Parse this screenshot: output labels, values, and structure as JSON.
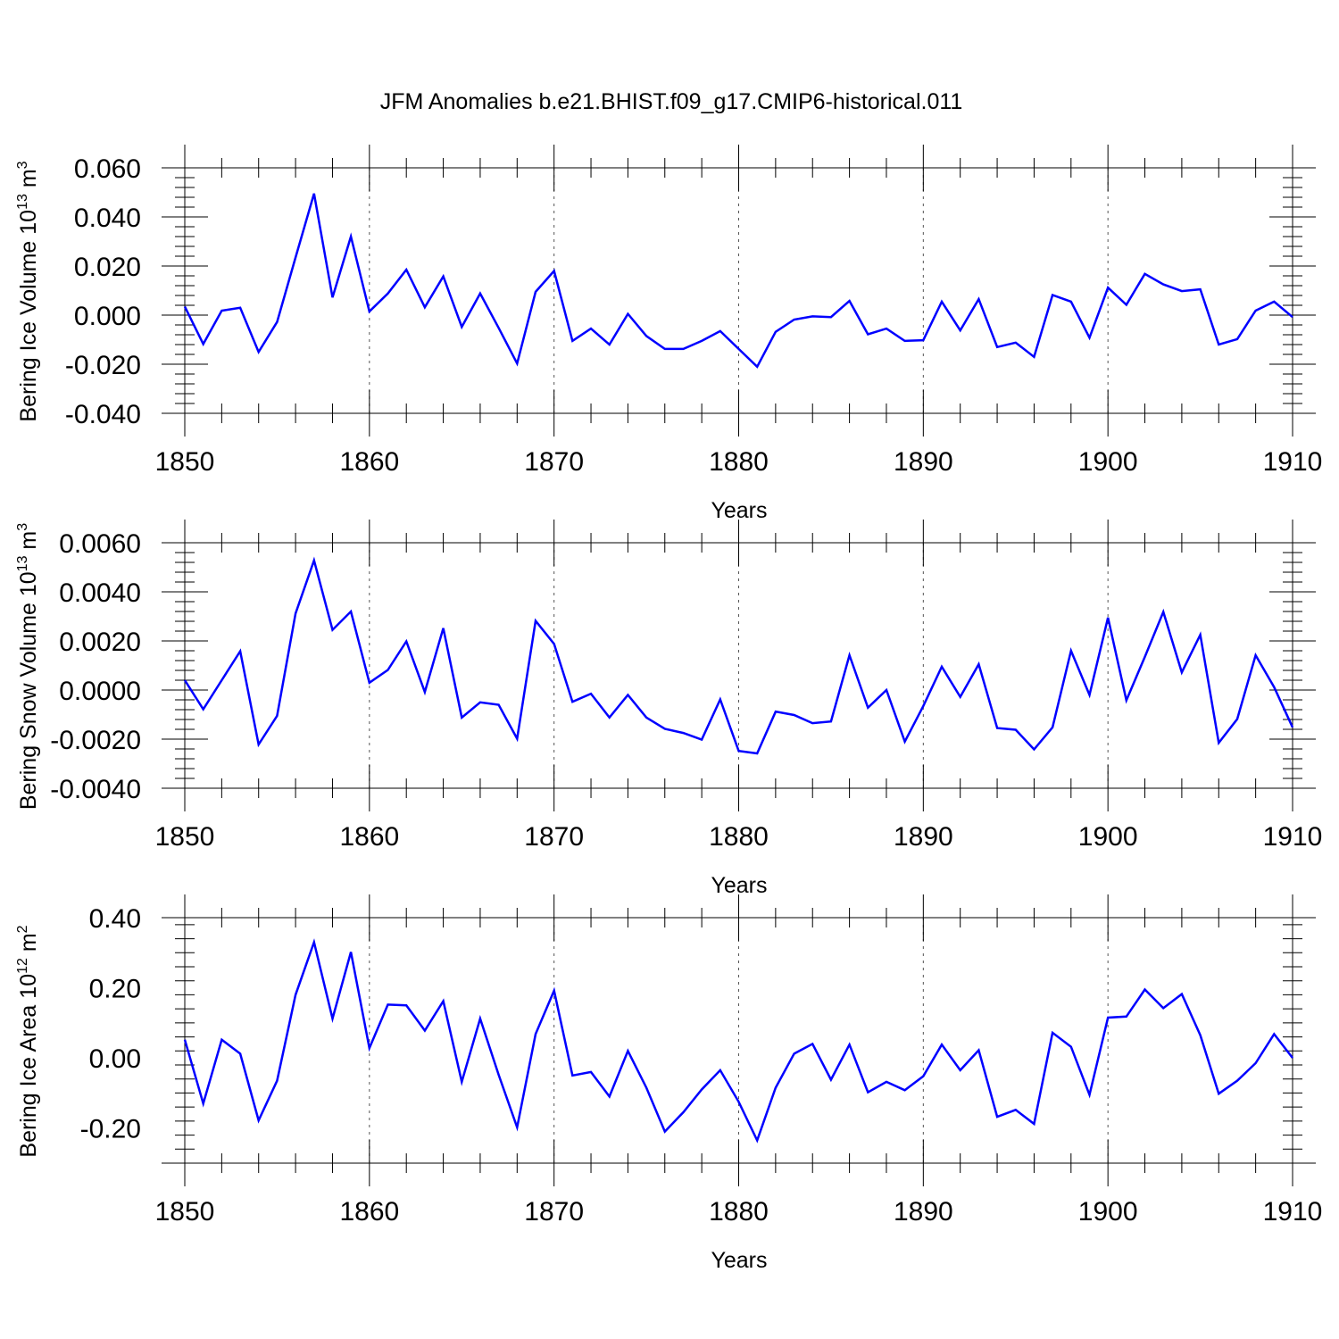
{
  "title": "JFM Anomalies b.e21.BHIST.f09_g17.CMIP6-historical.011",
  "line_color": "#0000ff",
  "chart_data": [
    {
      "type": "line",
      "id": "ice-volume",
      "ylabel": "Bering Ice Volume 10",
      "ylabel_exp": "13",
      "ylabel_unit": " m",
      "ylabel_unit_exp": "3",
      "xlabel": "Years",
      "xlim": [
        1850,
        1910
      ],
      "ylim": [
        -0.04,
        0.06
      ],
      "yticks": [
        -0.04,
        -0.02,
        0.0,
        0.02,
        0.04,
        0.06
      ],
      "ytick_labels": [
        "-0.040",
        "-0.020",
        "0.000",
        "0.020",
        "0.040",
        "0.060"
      ],
      "xticks": [
        1850,
        1860,
        1870,
        1880,
        1890,
        1900,
        1910
      ],
      "xtick_labels": [
        "1850",
        "1860",
        "1870",
        "1880",
        "1890",
        "1900",
        "1910"
      ],
      "x_start": 1850,
      "series": [
        {
          "name": "Bering Ice Volume",
          "values": [
            0.0035,
            -0.0118,
            0.0018,
            0.003,
            -0.015,
            -0.0028,
            0.0235,
            0.0495,
            0.0072,
            0.032,
            0.0015,
            0.0088,
            0.0185,
            0.0032,
            0.0158,
            -0.0048,
            0.0088,
            -0.0052,
            -0.0197,
            0.0095,
            0.018,
            -0.0105,
            -0.0055,
            -0.012,
            0.0005,
            -0.0085,
            -0.0138,
            -0.0138,
            -0.0105,
            -0.0065,
            -0.0138,
            -0.021,
            -0.0068,
            -0.0018,
            -0.0005,
            -0.0008,
            0.0058,
            -0.0078,
            -0.0055,
            -0.0105,
            -0.0102,
            0.0055,
            -0.0062,
            0.0065,
            -0.013,
            -0.0112,
            -0.017,
            0.0082,
            0.0055,
            -0.0092,
            0.0112,
            0.0042,
            0.0168,
            0.0125,
            0.0098,
            0.0105,
            -0.012,
            -0.0098,
            0.0018,
            0.0055,
            -0.0008
          ]
        }
      ]
    },
    {
      "type": "line",
      "id": "snow-volume",
      "ylabel": "Bering Snow Volume 10",
      "ylabel_exp": "13",
      "ylabel_unit": " m",
      "ylabel_unit_exp": "3",
      "xlabel": "Years",
      "xlim": [
        1850,
        1910
      ],
      "ylim": [
        -0.004,
        0.006
      ],
      "yticks": [
        -0.004,
        -0.002,
        0.0,
        0.002,
        0.004,
        0.006
      ],
      "ytick_labels": [
        "-0.0040",
        "-0.0020",
        "0.0000",
        "0.0020",
        "0.0040",
        "0.0060"
      ],
      "xticks": [
        1850,
        1860,
        1870,
        1880,
        1890,
        1900,
        1910
      ],
      "xtick_labels": [
        "1850",
        "1860",
        "1870",
        "1880",
        "1890",
        "1900",
        "1910"
      ],
      "x_start": 1850,
      "series": [
        {
          "name": "Bering Snow Volume",
          "values": [
            0.0004,
            -0.00078,
            0.0004,
            0.00158,
            -0.00222,
            -0.00105,
            0.00312,
            0.00528,
            0.00245,
            0.0032,
            0.0003,
            0.00082,
            0.00198,
            -8e-05,
            0.00252,
            -0.00112,
            -0.0005,
            -0.0006,
            -0.00198,
            0.00282,
            0.00188,
            -0.00048,
            -0.00015,
            -0.00112,
            -0.0002,
            -0.00112,
            -0.00158,
            -0.00175,
            -0.00202,
            -0.00038,
            -0.00248,
            -0.00258,
            -0.00088,
            -0.00102,
            -0.00135,
            -0.00128,
            0.00142,
            -0.00072,
            0.0,
            -0.0021,
            -0.00065,
            0.00095,
            -0.00028,
            0.00105,
            -0.00155,
            -0.00162,
            -0.00242,
            -0.00152,
            0.0016,
            -0.0002,
            0.00295,
            -0.00042,
            0.00135,
            0.00318,
            0.00072,
            0.00225,
            -0.00215,
            -0.00118,
            0.00142,
            0.00012,
            -0.00152
          ]
        }
      ]
    },
    {
      "type": "line",
      "id": "ice-area",
      "ylabel": "Bering Ice Area 10",
      "ylabel_exp": "12",
      "ylabel_unit": " m",
      "ylabel_unit_exp": "2",
      "xlabel": "Years",
      "xlim": [
        1850,
        1910
      ],
      "ylim": [
        -0.3,
        0.4
      ],
      "yticks": [
        -0.2,
        0.0,
        0.2,
        0.4
      ],
      "ytick_labels": [
        "-0.20",
        "0.00",
        "0.20",
        "0.40"
      ],
      "xticks": [
        1850,
        1860,
        1870,
        1880,
        1890,
        1900,
        1910
      ],
      "xtick_labels": [
        "1850",
        "1860",
        "1870",
        "1880",
        "1890",
        "1900",
        "1910"
      ],
      "x_start": 1850,
      "series": [
        {
          "name": "Bering Ice Area",
          "values": [
            0.052,
            -0.13,
            0.052,
            0.012,
            -0.178,
            -0.065,
            0.18,
            0.33,
            0.112,
            0.302,
            0.028,
            0.152,
            0.15,
            0.078,
            0.162,
            -0.068,
            0.112,
            -0.048,
            -0.198,
            0.068,
            0.192,
            -0.05,
            -0.04,
            -0.11,
            0.02,
            -0.085,
            -0.21,
            -0.155,
            -0.09,
            -0.035,
            -0.125,
            -0.235,
            -0.085,
            0.012,
            0.04,
            -0.062,
            0.038,
            -0.098,
            -0.068,
            -0.092,
            -0.052,
            0.038,
            -0.035,
            0.022,
            -0.168,
            -0.148,
            -0.188,
            0.072,
            0.032,
            -0.105,
            0.115,
            0.118,
            0.195,
            0.142,
            0.182,
            0.065,
            -0.102,
            -0.065,
            -0.015,
            0.068,
            0.0
          ]
        }
      ]
    }
  ]
}
